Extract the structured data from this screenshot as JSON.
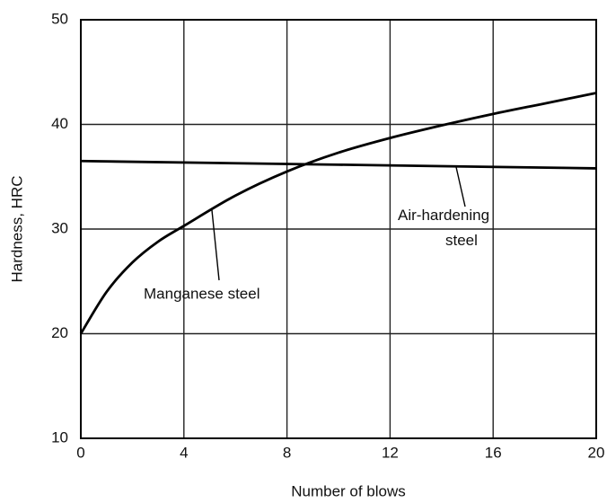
{
  "chart_data": {
    "type": "line",
    "xlabel": "Number of blows",
    "ylabel": "Hardness, HRC",
    "xlim": [
      0,
      20
    ],
    "xticks": [
      0,
      4,
      8,
      12,
      16,
      20
    ],
    "ylim": [
      10,
      50
    ],
    "yticks": [
      10,
      20,
      30,
      40,
      50
    ],
    "grid": true,
    "series": [
      {
        "name": "Manganese steel",
        "color": "#000000",
        "x": [
          0,
          1,
          2,
          3,
          4,
          6,
          8,
          10,
          12,
          14,
          16,
          18,
          20
        ],
        "values": [
          20,
          24,
          26.8,
          28.8,
          30.3,
          33.2,
          35.5,
          37.3,
          38.7,
          39.9,
          41,
          42,
          43
        ]
      },
      {
        "name": "Air-hardening steel",
        "color": "#000000",
        "x": [
          0,
          20
        ],
        "values": [
          36.5,
          35.8
        ]
      }
    ]
  }
}
